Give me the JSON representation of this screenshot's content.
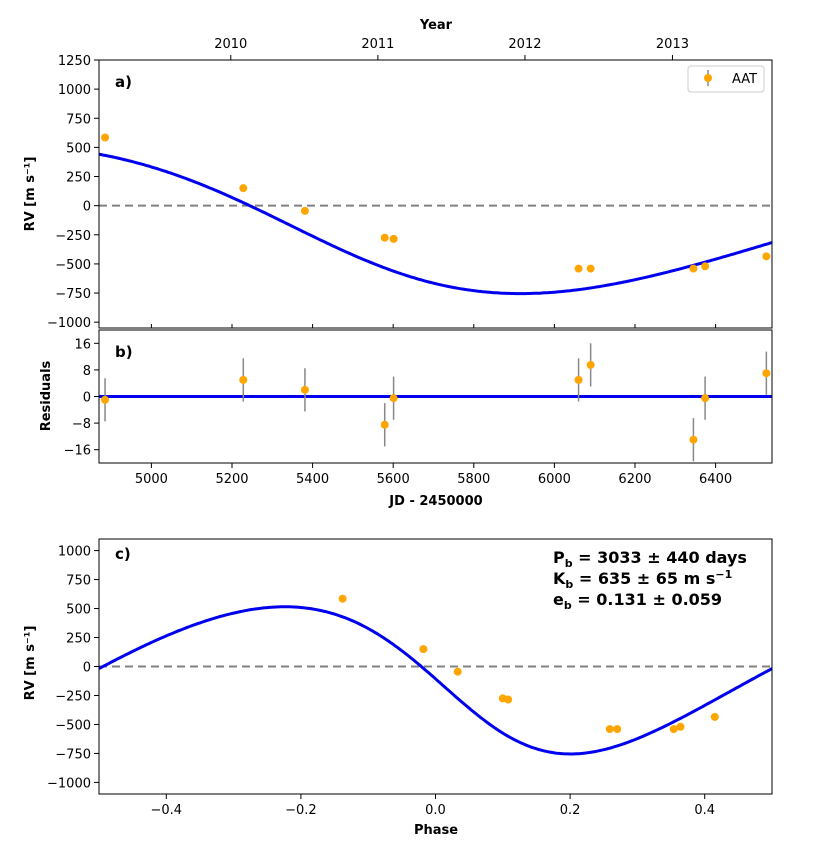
{
  "colors": {
    "model": "#0000ee",
    "points": "#ffa500",
    "errorbars": "#888888",
    "zero_line": "#808080"
  },
  "chart_data": [
    {
      "id": "a",
      "panel_label": "a)",
      "type": "scatter",
      "title": "",
      "xlabel": "",
      "ylabel": "RV [m s⁻¹]",
      "top_xlabel": "Year",
      "xlim": [
        4870,
        6540
      ],
      "ylim": [
        -1050,
        1250
      ],
      "yticks": [
        -1000,
        -750,
        -500,
        -250,
        0,
        250,
        500,
        750,
        1000,
        1250
      ],
      "yticklabels": [
        "−1000",
        "−750",
        "−500",
        "−250",
        "0",
        "250",
        "500",
        "750",
        "1000",
        "1250"
      ],
      "top_ticks": [
        {
          "jd": 5197,
          "label": "2010"
        },
        {
          "jd": 5562,
          "label": "2011"
        },
        {
          "jd": 5927,
          "label": "2012"
        },
        {
          "jd": 6293,
          "label": "2013"
        }
      ],
      "legend": {
        "label": "AAT",
        "position": "top-right"
      },
      "zero_line": true,
      "model": "keplerian",
      "series": [
        {
          "name": "AAT",
          "x": [
            4885,
            5228,
            5381,
            5579,
            5601,
            6060,
            6090,
            6345,
            6374,
            6526
          ],
          "y": [
            585,
            150,
            -45,
            -275,
            -285,
            -540,
            -540,
            -540,
            -520,
            -435
          ]
        }
      ]
    },
    {
      "id": "b",
      "panel_label": "b)",
      "type": "scatter",
      "title": "",
      "xlabel": "JD - 2450000",
      "ylabel": "Residuals",
      "xlim": [
        4870,
        6540
      ],
      "ylim": [
        -20,
        20
      ],
      "xticks": [
        5000,
        5200,
        5400,
        5600,
        5800,
        6000,
        6200,
        6400
      ],
      "xticklabels": [
        "5000",
        "5200",
        "5400",
        "5600",
        "5800",
        "6000",
        "6200",
        "6400"
      ],
      "yticks": [
        -16,
        -8,
        0,
        8,
        16
      ],
      "yticklabels": [
        "−16",
        "−8",
        "0",
        "8",
        "16"
      ],
      "model_line_y": 0,
      "series": [
        {
          "name": "AAT",
          "x": [
            4885,
            5228,
            5381,
            5579,
            5601,
            6060,
            6090,
            6345,
            6374,
            6526
          ],
          "y": [
            -1,
            5,
            2,
            -8.5,
            -0.5,
            5,
            9.5,
            -13,
            -0.5,
            7
          ],
          "yerr": [
            6.5,
            6.5,
            6.5,
            6.5,
            6.5,
            6.5,
            6.5,
            6.5,
            6.5,
            6.5
          ]
        }
      ]
    },
    {
      "id": "c",
      "panel_label": "c)",
      "type": "scatter",
      "title": "",
      "xlabel": "Phase",
      "ylabel": "RV [m s⁻¹]",
      "xlim": [
        -0.5,
        0.5
      ],
      "ylim": [
        -1100,
        1100
      ],
      "xticks": [
        -0.4,
        -0.2,
        0,
        0.2,
        0.4
      ],
      "xticklabels": [
        "−0.4",
        "−0.2",
        "0.0",
        "0.2",
        "0.4"
      ],
      "yticks": [
        -1000,
        -750,
        -500,
        -250,
        0,
        250,
        500,
        750,
        1000
      ],
      "yticklabels": [
        "−1000",
        "−750",
        "−500",
        "−250",
        "0",
        "250",
        "500",
        "750",
        "1000"
      ],
      "zero_line": true,
      "model": "keplerian",
      "annotations": [
        {
          "sym": "P",
          "sub": "b",
          "text": " = 3033 ± 440 days",
          "sup": ""
        },
        {
          "sym": "K",
          "sub": "b",
          "text": " = 635 ± 65 m s",
          "sup": "−1"
        },
        {
          "sym": "e",
          "sub": "b",
          "text": " = 0.131 ± 0.059",
          "sup": ""
        }
      ],
      "series": [
        {
          "name": "AAT",
          "x": [
            -0.138,
            -0.018,
            0.033,
            0.1,
            0.108,
            0.259,
            0.27,
            0.354,
            0.364,
            0.415
          ],
          "y": [
            585,
            150,
            -45,
            -275,
            -285,
            -540,
            -540,
            -540,
            -520,
            -435
          ]
        }
      ]
    }
  ]
}
